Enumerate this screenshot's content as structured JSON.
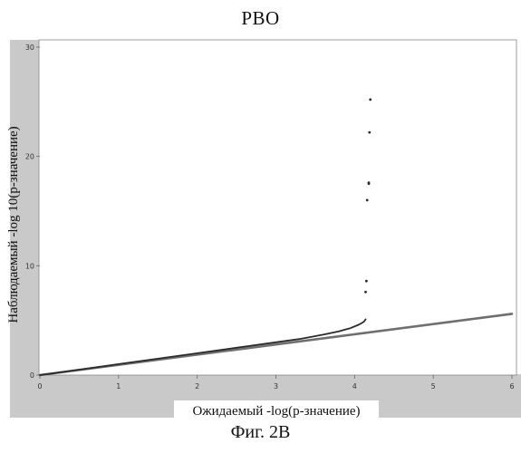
{
  "title": "PBO",
  "caption": "Фиг. 2B",
  "chart_data": {
    "type": "scatter",
    "title": "PBO",
    "xlabel": "Ожидаемый -log(p-значение)",
    "ylabel": "Наблюдаемый -log 10(p-значение)",
    "xlim": [
      0,
      6
    ],
    "ylim": [
      0,
      30
    ],
    "x_ticks": [
      "0",
      "1",
      "2",
      "3",
      "4",
      "5",
      "6"
    ],
    "y_ticks": [
      "0",
      "10",
      "20",
      "30"
    ],
    "grid": false,
    "series": [
      {
        "style": "line",
        "color": "#6f6f6f",
        "x": [
          0,
          6
        ],
        "y": [
          0,
          5.6
        ]
      },
      {
        "style": "line",
        "color": "#2b2b2b",
        "x": [
          0,
          0.5,
          1.0,
          1.5,
          2.0,
          2.5,
          3.0,
          3.3,
          3.6,
          3.8,
          3.95,
          4.05,
          4.1,
          4.12,
          4.14
        ],
        "y": [
          0,
          0.5,
          1.0,
          1.5,
          2.0,
          2.5,
          3.0,
          3.3,
          3.7,
          4.0,
          4.3,
          4.6,
          4.8,
          4.9,
          5.1
        ]
      },
      {
        "style": "points",
        "color": "#2b2b2b",
        "x": [
          4.14,
          4.15,
          4.16,
          4.18,
          4.18,
          4.19,
          4.2
        ],
        "y": [
          7.6,
          8.6,
          16.0,
          17.5,
          17.6,
          22.2,
          25.2
        ]
      }
    ]
  },
  "colors": {
    "axis_band": "#c9c9c9",
    "plot_bg": "#ffffff",
    "frame": "#888888"
  }
}
